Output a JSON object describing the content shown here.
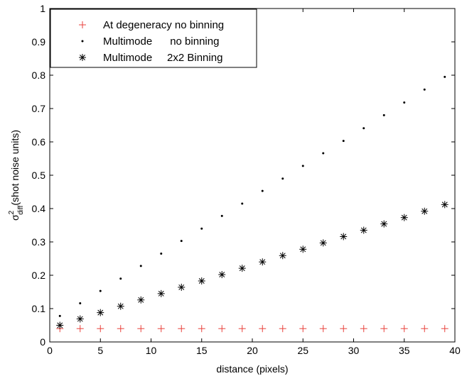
{
  "chart_data": {
    "type": "scatter",
    "xlabel": "distance (pixels)",
    "ylabel": {
      "symbol": "σ",
      "superscript": "2",
      "subscript": "diff",
      "text": "(shot noise units)"
    },
    "xlim": [
      0,
      40
    ],
    "ylim": [
      0,
      1
    ],
    "xticks": [
      0,
      5,
      10,
      15,
      20,
      25,
      30,
      35,
      40
    ],
    "yticks": [
      0,
      0.1,
      0.2,
      0.3,
      0.4,
      0.5,
      0.6,
      0.7,
      0.8,
      0.9,
      1
    ],
    "grid": false,
    "legend_position": "top-left",
    "series": [
      {
        "name": "At degeneracy no binning",
        "marker": "plus",
        "color": "#e8413c",
        "x": [
          1,
          3,
          5,
          7,
          9,
          11,
          13,
          15,
          17,
          19,
          21,
          23,
          25,
          27,
          29,
          31,
          33,
          35,
          37,
          39
        ],
        "y": [
          0.04,
          0.04,
          0.04,
          0.04,
          0.04,
          0.04,
          0.04,
          0.04,
          0.04,
          0.04,
          0.04,
          0.04,
          0.04,
          0.04,
          0.04,
          0.04,
          0.04,
          0.04,
          0.04,
          0.04
        ]
      },
      {
        "name": "Multimode      no binning",
        "marker": "dot",
        "color": "#000000",
        "x": [
          1,
          3,
          5,
          7,
          9,
          11,
          13,
          15,
          17,
          19,
          21,
          23,
          25,
          27,
          29,
          31,
          33,
          35,
          37,
          39
        ],
        "y": [
          0.078,
          0.116,
          0.153,
          0.19,
          0.228,
          0.265,
          0.303,
          0.34,
          0.378,
          0.415,
          0.453,
          0.49,
          0.528,
          0.566,
          0.603,
          0.641,
          0.68,
          0.718,
          0.757,
          0.795
        ]
      },
      {
        "name": "Multimode     2x2 Binning",
        "marker": "asterisk",
        "color": "#000000",
        "x": [
          1,
          3,
          5,
          7,
          9,
          11,
          13,
          15,
          17,
          19,
          21,
          23,
          25,
          27,
          29,
          31,
          33,
          35,
          37,
          39
        ],
        "y": [
          0.05,
          0.069,
          0.088,
          0.107,
          0.126,
          0.145,
          0.164,
          0.183,
          0.202,
          0.221,
          0.24,
          0.259,
          0.278,
          0.297,
          0.316,
          0.335,
          0.354,
          0.373,
          0.392,
          0.412
        ]
      }
    ]
  }
}
